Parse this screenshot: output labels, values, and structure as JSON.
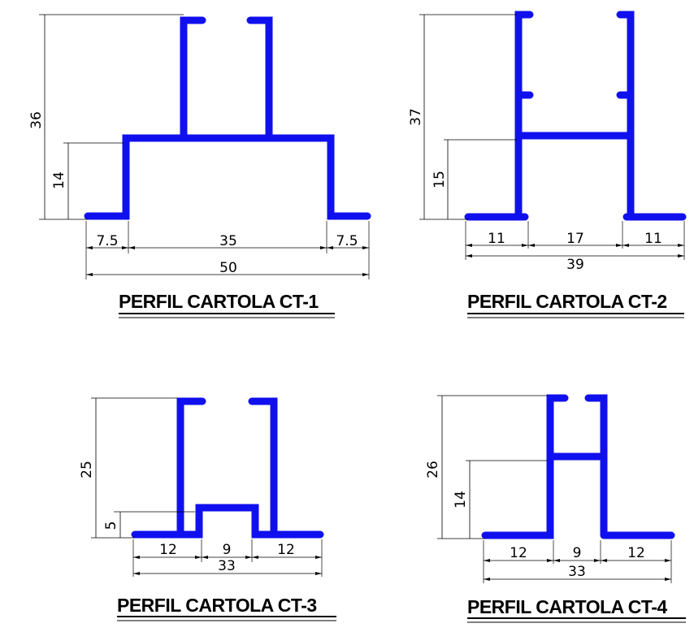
{
  "profiles": [
    {
      "title": "PERFIL CARTOLA CT-1",
      "dims": {
        "total_height": "36",
        "step_height": "14",
        "left": "7.5",
        "middle": "35",
        "right": "7.5",
        "total_width": "50"
      }
    },
    {
      "title": "PERFIL CARTOLA CT-2",
      "dims": {
        "total_height": "37",
        "step_height": "15",
        "left": "11",
        "middle": "17",
        "right": "11",
        "total_width": "39"
      }
    },
    {
      "title": "PERFIL CARTOLA CT-3",
      "dims": {
        "total_height": "25",
        "step_height": "5",
        "left": "12",
        "middle": "9",
        "right": "12",
        "total_width": "33"
      }
    },
    {
      "title": "PERFIL CARTOLA CT-4",
      "dims": {
        "total_height": "26",
        "step_height": "14",
        "left": "12",
        "middle": "9",
        "right": "12",
        "total_width": "33"
      }
    }
  ],
  "colors": {
    "profile": "#1010ee",
    "dimension": "#000000"
  }
}
